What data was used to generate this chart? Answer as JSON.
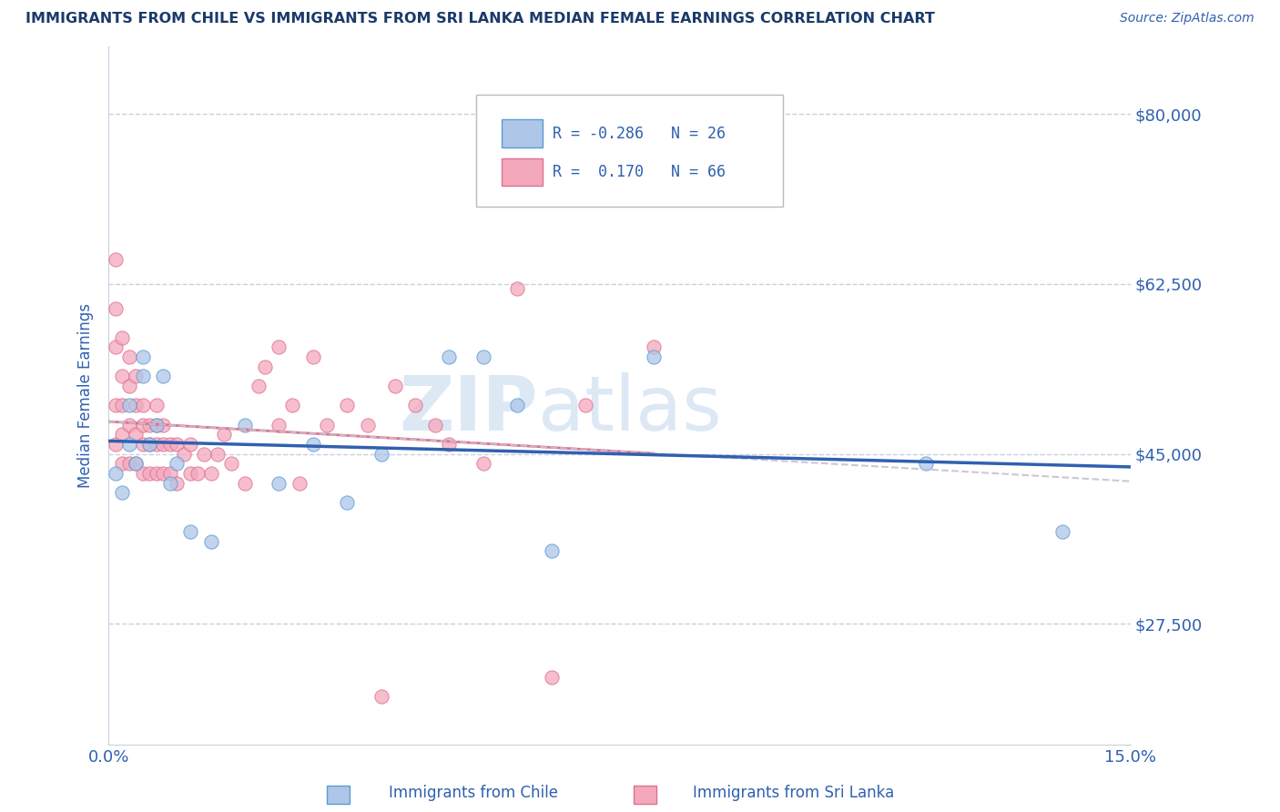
{
  "title": "IMMIGRANTS FROM CHILE VS IMMIGRANTS FROM SRI LANKA MEDIAN FEMALE EARNINGS CORRELATION CHART",
  "source": "Source: ZipAtlas.com",
  "ylabel": "Median Female Earnings",
  "xlim": [
    0.0,
    0.15
  ],
  "ylim": [
    15000,
    87000
  ],
  "yticks": [
    27500,
    45000,
    62500,
    80000
  ],
  "ytick_labels": [
    "$27,500",
    "$45,000",
    "$62,500",
    "$80,000"
  ],
  "xticks": [
    0.0,
    0.15
  ],
  "xtick_labels": [
    "0.0%",
    "15.0%"
  ],
  "chile_color": "#aec6e8",
  "chile_edge": "#5b9bd5",
  "srilanka_color": "#f4a8bc",
  "srilanka_edge": "#e07090",
  "chile_line_color": "#3060b0",
  "srilanka_line_color": "#e07090",
  "srilanka_dash_color": "#c8c0d0",
  "watermark_color": "#dde8f5",
  "legend_R_chile": "-0.286",
  "legend_N_chile": "26",
  "legend_R_srilanka": "0.170",
  "legend_N_srilanka": "66",
  "background_color": "#ffffff",
  "grid_color": "#c8d0e0",
  "title_color": "#1a3a6a",
  "axis_color": "#3060b0",
  "chile_scatter_x": [
    0.001,
    0.002,
    0.003,
    0.003,
    0.004,
    0.005,
    0.005,
    0.006,
    0.007,
    0.008,
    0.009,
    0.01,
    0.012,
    0.015,
    0.02,
    0.025,
    0.03,
    0.035,
    0.04,
    0.05,
    0.055,
    0.06,
    0.065,
    0.08,
    0.12,
    0.14
  ],
  "chile_scatter_y": [
    43000,
    41000,
    50000,
    46000,
    44000,
    53000,
    55000,
    46000,
    48000,
    53000,
    42000,
    44000,
    37000,
    36000,
    48000,
    42000,
    46000,
    40000,
    45000,
    55000,
    55000,
    50000,
    35000,
    55000,
    44000,
    37000
  ],
  "srilanka_scatter_x": [
    0.001,
    0.001,
    0.001,
    0.001,
    0.001,
    0.002,
    0.002,
    0.002,
    0.002,
    0.002,
    0.003,
    0.003,
    0.003,
    0.003,
    0.004,
    0.004,
    0.004,
    0.004,
    0.005,
    0.005,
    0.005,
    0.005,
    0.006,
    0.006,
    0.006,
    0.007,
    0.007,
    0.007,
    0.007,
    0.008,
    0.008,
    0.008,
    0.009,
    0.009,
    0.01,
    0.01,
    0.011,
    0.012,
    0.012,
    0.013,
    0.014,
    0.015,
    0.016,
    0.017,
    0.018,
    0.02,
    0.022,
    0.023,
    0.025,
    0.025,
    0.027,
    0.028,
    0.03,
    0.032,
    0.035,
    0.038,
    0.04,
    0.042,
    0.045,
    0.048,
    0.05,
    0.055,
    0.06,
    0.065,
    0.07,
    0.08
  ],
  "srilanka_scatter_y": [
    46000,
    50000,
    56000,
    60000,
    65000,
    44000,
    47000,
    50000,
    53000,
    57000,
    44000,
    48000,
    52000,
    55000,
    44000,
    47000,
    50000,
    53000,
    43000,
    46000,
    48000,
    50000,
    43000,
    46000,
    48000,
    43000,
    46000,
    48000,
    50000,
    43000,
    46000,
    48000,
    43000,
    46000,
    42000,
    46000,
    45000,
    43000,
    46000,
    43000,
    45000,
    43000,
    45000,
    47000,
    44000,
    42000,
    52000,
    54000,
    48000,
    56000,
    50000,
    42000,
    55000,
    48000,
    50000,
    48000,
    20000,
    52000,
    50000,
    48000,
    46000,
    44000,
    62000,
    22000,
    50000,
    56000
  ]
}
